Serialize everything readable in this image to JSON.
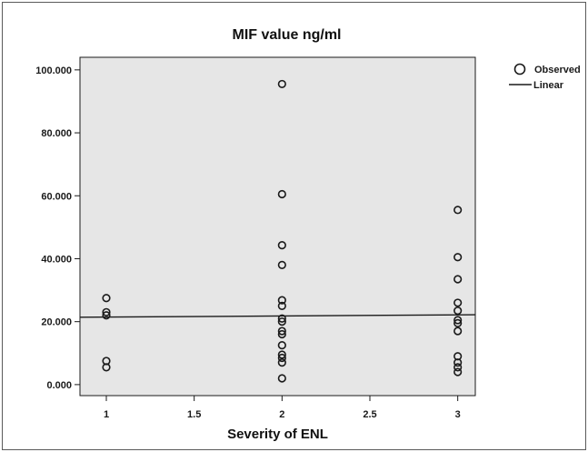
{
  "chart_data": {
    "type": "scatter",
    "title": "MIF value ng/ml",
    "xlabel": "Severity of ENL",
    "ylabel": "",
    "xlim": [
      0.85,
      3.1
    ],
    "ylim": [
      -3.5,
      104
    ],
    "x_ticks": [
      1,
      1.5,
      2,
      2.5,
      3
    ],
    "x_tick_labels": [
      "1",
      "1.5",
      "2",
      "2.5",
      "3"
    ],
    "y_ticks": [
      0,
      20,
      40,
      60,
      80,
      100
    ],
    "y_tick_labels": [
      "0.000",
      "20.000",
      "40.000",
      "60.000",
      "80.000",
      "100.000"
    ],
    "grid": false,
    "legend_position": "top-right",
    "series": [
      {
        "name": "Observed",
        "marker": "open-circle",
        "points": [
          {
            "x": 1,
            "y": 27.5
          },
          {
            "x": 1,
            "y": 23.0
          },
          {
            "x": 1,
            "y": 22.0
          },
          {
            "x": 1,
            "y": 7.5
          },
          {
            "x": 1,
            "y": 5.5
          },
          {
            "x": 2,
            "y": 95.5
          },
          {
            "x": 2,
            "y": 60.5
          },
          {
            "x": 2,
            "y": 44.3
          },
          {
            "x": 2,
            "y": 38.0
          },
          {
            "x": 2,
            "y": 26.8
          },
          {
            "x": 2,
            "y": 25.0
          },
          {
            "x": 2,
            "y": 21.0
          },
          {
            "x": 2,
            "y": 20.0
          },
          {
            "x": 2,
            "y": 17.0
          },
          {
            "x": 2,
            "y": 16.0
          },
          {
            "x": 2,
            "y": 12.5
          },
          {
            "x": 2,
            "y": 9.5
          },
          {
            "x": 2,
            "y": 8.5
          },
          {
            "x": 2,
            "y": 7.0
          },
          {
            "x": 2,
            "y": 2.0
          },
          {
            "x": 3,
            "y": 55.5
          },
          {
            "x": 3,
            "y": 40.5
          },
          {
            "x": 3,
            "y": 33.5
          },
          {
            "x": 3,
            "y": 26.0
          },
          {
            "x": 3,
            "y": 23.5
          },
          {
            "x": 3,
            "y": 20.5
          },
          {
            "x": 3,
            "y": 19.5
          },
          {
            "x": 3,
            "y": 17.0
          },
          {
            "x": 3,
            "y": 9.0
          },
          {
            "x": 3,
            "y": 7.0
          },
          {
            "x": 3,
            "y": 5.5
          },
          {
            "x": 3,
            "y": 4.0
          }
        ]
      },
      {
        "name": "Linear",
        "type": "line",
        "color": "#1a1a1a",
        "points": [
          {
            "x": 0.85,
            "y": 21.4
          },
          {
            "x": 3.1,
            "y": 22.2
          }
        ]
      }
    ],
    "colors": {
      "plot_background": "#e6e6e6",
      "marker_stroke": "#1a1a1a",
      "axis": "#1a1a1a"
    }
  }
}
